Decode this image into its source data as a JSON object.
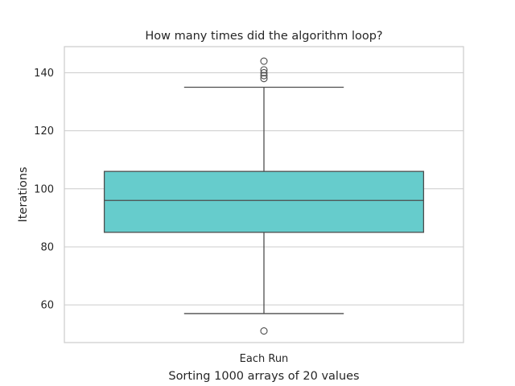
{
  "chart_data": {
    "type": "box",
    "title": "How many times did the algorithm loop?",
    "xlabel": "Sorting 1000 arrays of 20 values",
    "ylabel": "Iterations",
    "categories": [
      "Each Run"
    ],
    "ylim": [
      47,
      149
    ],
    "yticks": [
      60,
      80,
      100,
      120,
      140
    ],
    "grid": true,
    "box_color": "#66cccc",
    "boxes": [
      {
        "category": "Each Run",
        "whisker_low": 57,
        "q1": 85,
        "median": 96,
        "q3": 106,
        "whisker_high": 135,
        "outliers": [
          51,
          138,
          139,
          140,
          141,
          144
        ]
      }
    ]
  }
}
